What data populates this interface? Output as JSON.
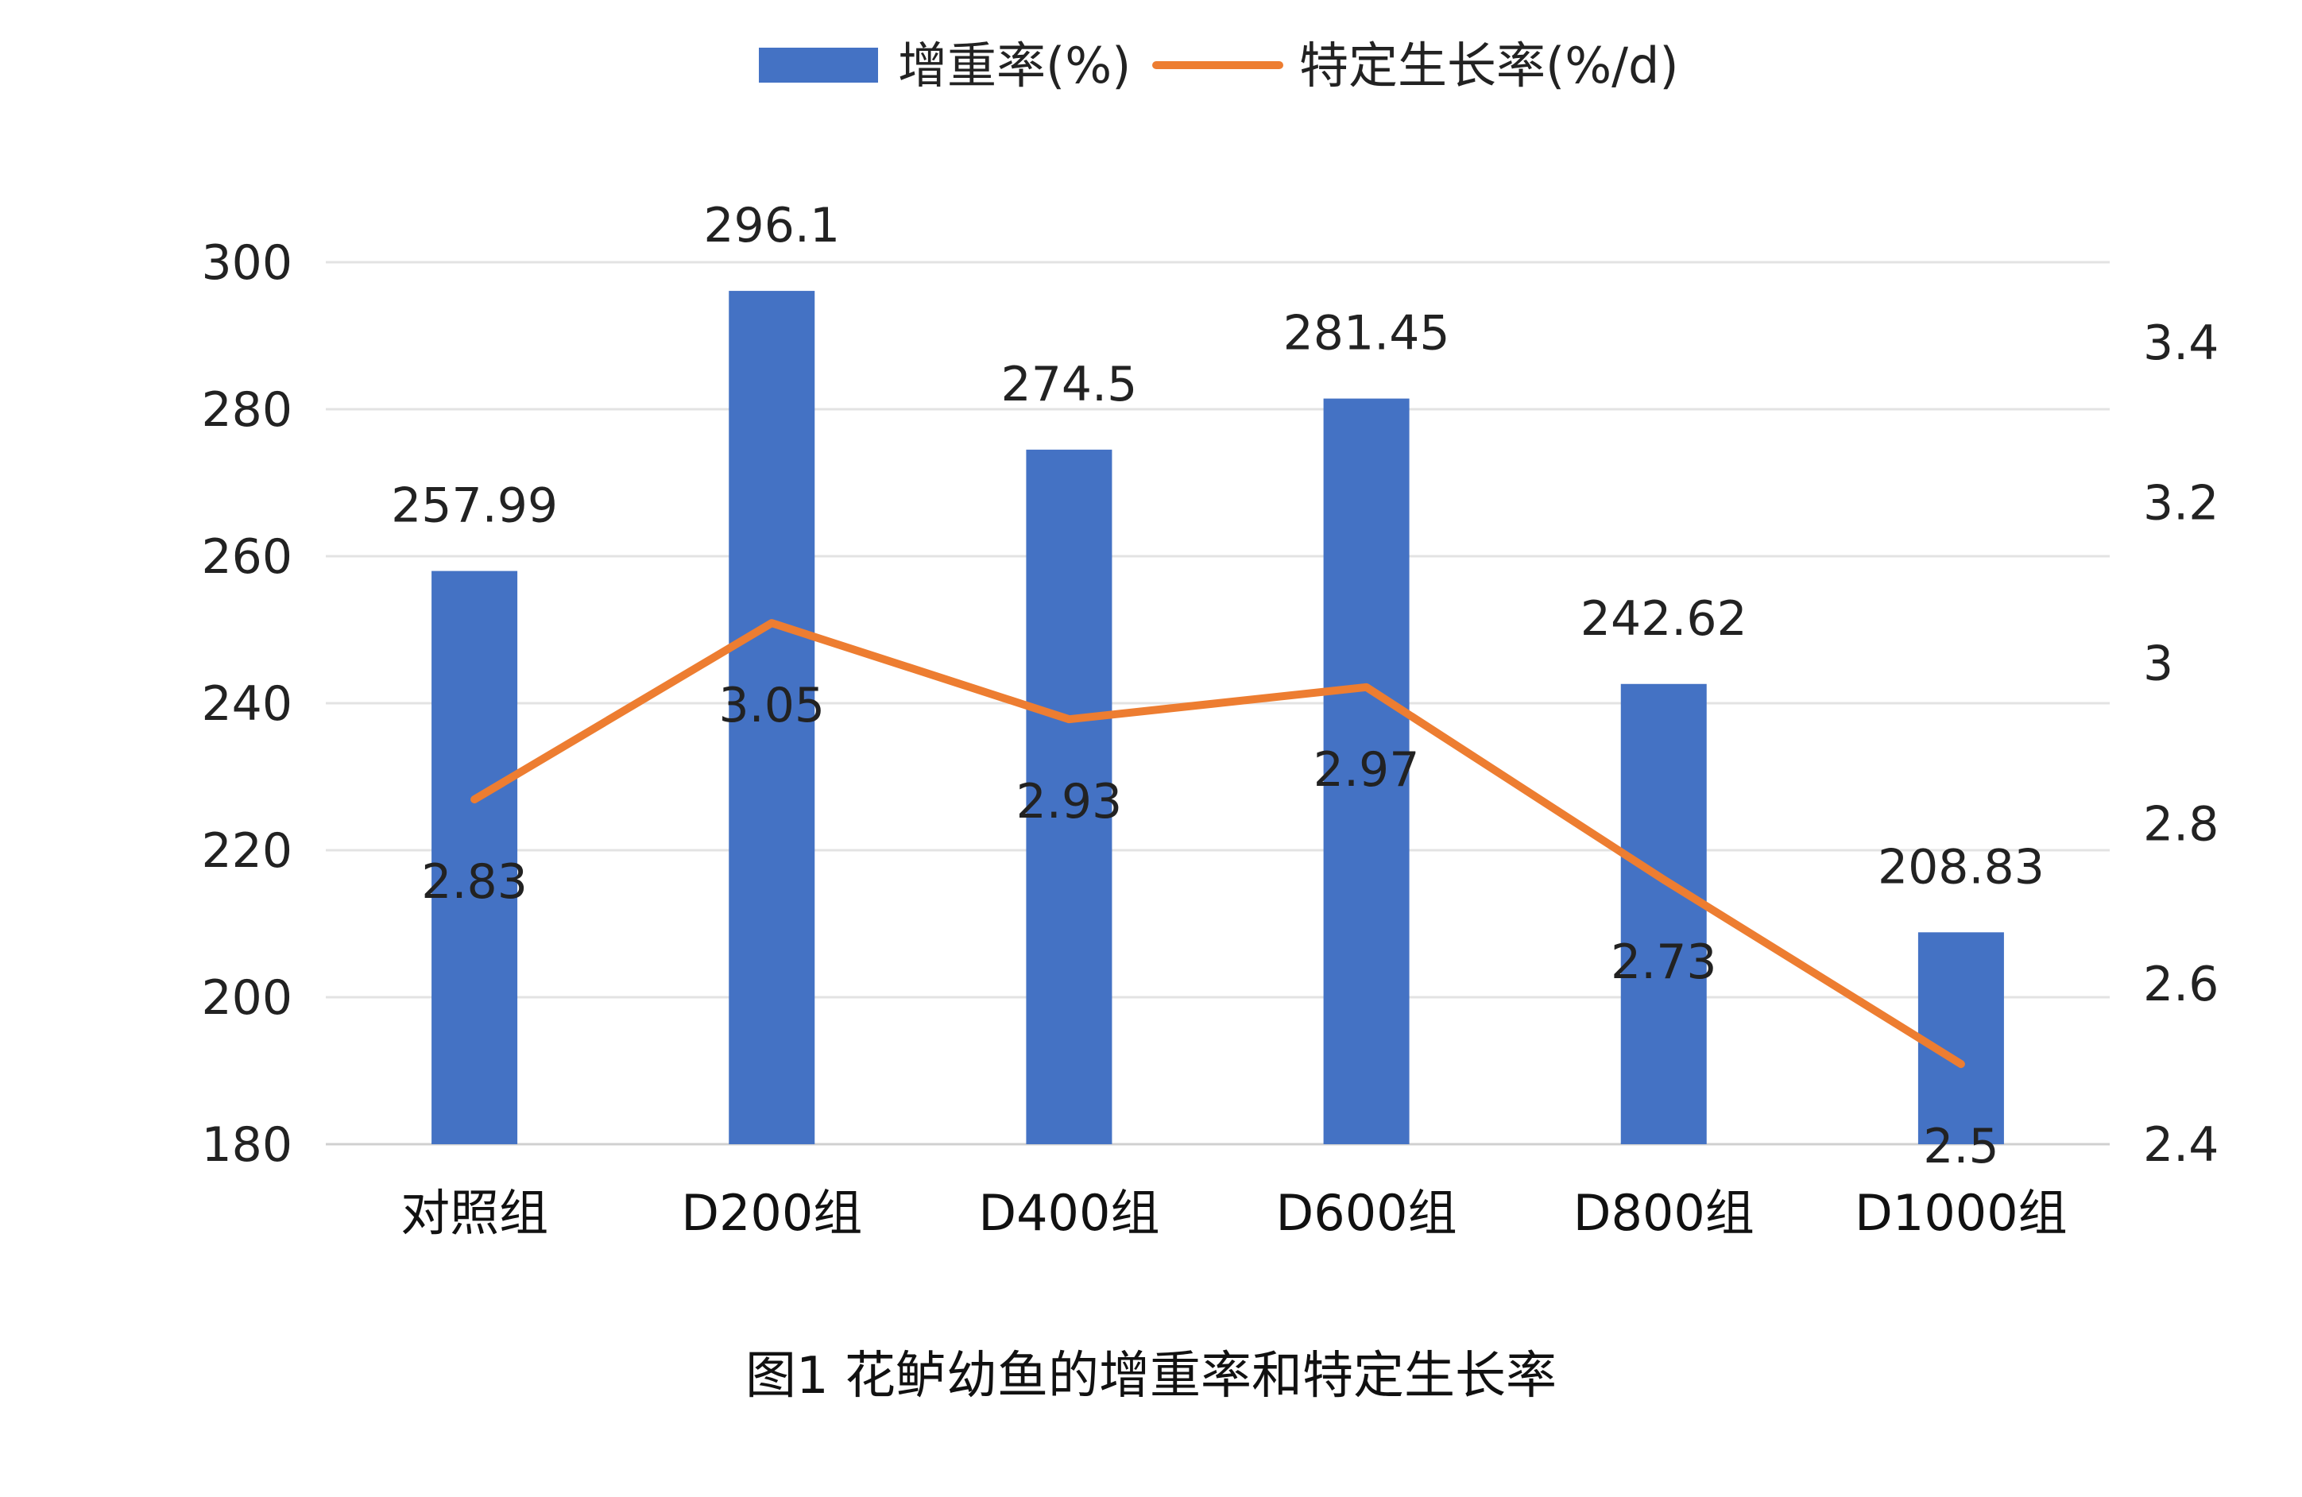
{
  "figure": {
    "caption": "图1 花鲈幼鱼的增重率和特定生长率"
  },
  "chart_data": {
    "type": "bar",
    "categories": [
      "对照组",
      "D200组",
      "D400组",
      "D600组",
      "D800组",
      "D1000组"
    ],
    "series": [
      {
        "name": "增重率(%)",
        "type": "bar",
        "axis": "left",
        "color": "#4472C4",
        "values": [
          257.99,
          296.1,
          274.5,
          281.45,
          242.62,
          208.83
        ],
        "labels": [
          "257.99",
          "296.1",
          "274.5",
          "281.45",
          "242.62",
          "208.83"
        ]
      },
      {
        "name": "特定生长率(%/d)",
        "type": "line",
        "axis": "right",
        "color": "#ED7D31",
        "values": [
          2.83,
          3.05,
          2.93,
          2.97,
          2.73,
          2.5
        ],
        "labels": [
          "2.83",
          "3.05",
          "2.93",
          "2.97",
          "2.73",
          "2.5"
        ]
      }
    ],
    "y_left": {
      "ylim": [
        180,
        300
      ],
      "ticks": [
        180,
        200,
        220,
        240,
        260,
        280,
        300
      ],
      "tick_labels": [
        "180",
        "200",
        "220",
        "240",
        "260",
        "280",
        "300"
      ]
    },
    "y_right": {
      "ylim": [
        2.4,
        3.5
      ],
      "ticks": [
        2.4,
        2.6,
        2.8,
        3,
        3.2,
        3.4
      ],
      "tick_labels": [
        "2.4",
        "2.6",
        "2.8",
        "3",
        "3.2",
        "3.4"
      ]
    },
    "grid": true,
    "legend": "top-center",
    "title": "",
    "xlabel": "",
    "ylabel": ""
  }
}
